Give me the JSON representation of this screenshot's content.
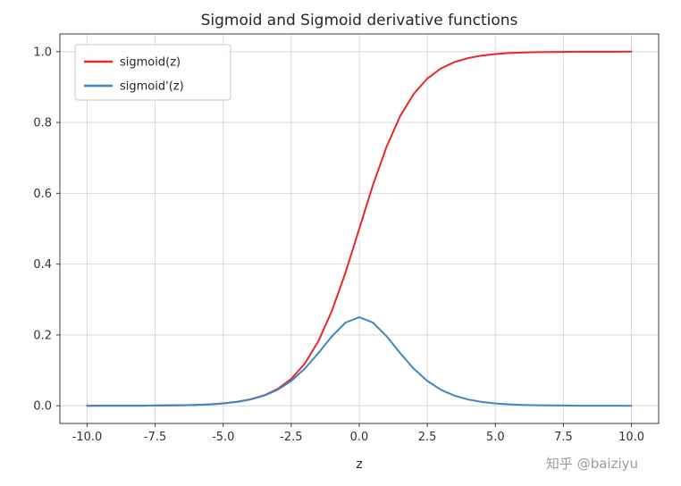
{
  "watermark": "知乎 @baiziyu",
  "chart_data": {
    "type": "line",
    "title": "Sigmoid and Sigmoid derivative functions",
    "xlabel": "z",
    "ylabel": "",
    "xlim": [
      -11,
      11
    ],
    "ylim": [
      -0.05,
      1.05
    ],
    "xticks": [
      -10,
      -7.5,
      -5,
      -2.5,
      0,
      2.5,
      5,
      7.5,
      10
    ],
    "xtick_labels": [
      "-10.0",
      "-7.5",
      "-5.0",
      "-2.5",
      "0.0",
      "2.5",
      "5.0",
      "7.5",
      "10.0"
    ],
    "yticks": [
      0,
      0.2,
      0.4,
      0.6,
      0.8,
      1.0
    ],
    "ytick_labels": [
      "0.0",
      "0.2",
      "0.4",
      "0.6",
      "0.8",
      "1.0"
    ],
    "grid": true,
    "legend_position": "upper left",
    "x": [
      -10.0,
      -9.5,
      -9.0,
      -8.5,
      -8.0,
      -7.5,
      -7.0,
      -6.5,
      -6.0,
      -5.5,
      -5.0,
      -4.5,
      -4.0,
      -3.5,
      -3.0,
      -2.5,
      -2.0,
      -1.5,
      -1.0,
      -0.5,
      0.0,
      0.5,
      1.0,
      1.5,
      2.0,
      2.5,
      3.0,
      3.5,
      4.0,
      4.5,
      5.0,
      5.5,
      6.0,
      6.5,
      7.0,
      7.5,
      8.0,
      8.5,
      9.0,
      9.5,
      10.0
    ],
    "series": [
      {
        "name": "sigmoid(z)",
        "color": "#e8262b",
        "values": [
          0.0,
          0.0001,
          0.0001,
          0.0002,
          0.0003,
          0.0006,
          0.0009,
          0.0015,
          0.0025,
          0.0041,
          0.0067,
          0.011,
          0.018,
          0.0293,
          0.0474,
          0.0759,
          0.1192,
          0.1824,
          0.2689,
          0.3775,
          0.5,
          0.6225,
          0.7311,
          0.8176,
          0.8808,
          0.9241,
          0.9526,
          0.9707,
          0.982,
          0.989,
          0.9933,
          0.9959,
          0.9975,
          0.9985,
          0.9991,
          0.9994,
          0.9997,
          0.9998,
          0.9999,
          0.9999,
          1.0
        ]
      },
      {
        "name": "sigmoid'(z)",
        "color": "#3f86c6",
        "values": [
          0.0,
          0.0001,
          0.0001,
          0.0002,
          0.0003,
          0.0006,
          0.0009,
          0.0015,
          0.0025,
          0.0041,
          0.0066,
          0.0109,
          0.0177,
          0.0284,
          0.0452,
          0.0701,
          0.105,
          0.1491,
          0.1966,
          0.235,
          0.25,
          0.235,
          0.1966,
          0.1491,
          0.105,
          0.0701,
          0.0452,
          0.0284,
          0.0177,
          0.0109,
          0.0066,
          0.0041,
          0.0025,
          0.0015,
          0.0009,
          0.0006,
          0.0003,
          0.0002,
          0.0001,
          0.0001,
          0.0
        ]
      }
    ],
    "colors": {
      "grid": "#d8d8d8",
      "spine": "#3c3c3c",
      "tick_label": "#333333",
      "legend_border": "#c8c8c8",
      "background": "#ffffff"
    }
  }
}
